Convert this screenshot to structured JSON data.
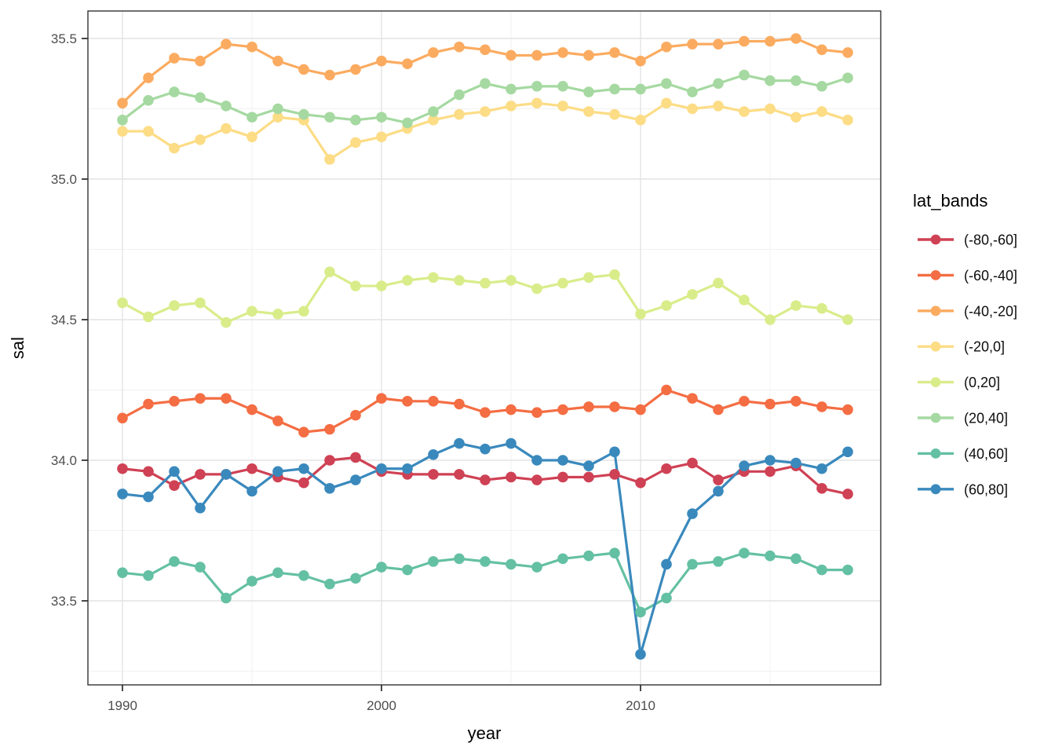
{
  "chart_data": {
    "type": "line",
    "title": "",
    "xlabel": "year",
    "ylabel": "sal",
    "legend_title": "lat_bands",
    "legend_position": "right",
    "grid": true,
    "x": [
      1990,
      1991,
      1992,
      1993,
      1994,
      1995,
      1996,
      1997,
      1998,
      1999,
      2000,
      2001,
      2002,
      2003,
      2004,
      2005,
      2006,
      2007,
      2008,
      2009,
      2010,
      2011,
      2012,
      2013,
      2014,
      2015,
      2016,
      2017,
      2018
    ],
    "x_ticks": [
      1990,
      2000,
      2010
    ],
    "x_minor": [
      1995,
      2005,
      2015
    ],
    "y_ticks": [
      33.5,
      34.0,
      34.5,
      35.0,
      35.5
    ],
    "y_minor": [
      33.25,
      33.75,
      34.25,
      34.75,
      35.25
    ],
    "xlim": [
      1988.7,
      2019.3
    ],
    "ylim": [
      33.2,
      35.6
    ],
    "series": [
      {
        "name": "(-80,-60]",
        "color": "#cf4154",
        "values": [
          33.97,
          33.96,
          33.91,
          33.95,
          33.95,
          33.97,
          33.94,
          33.92,
          34.0,
          34.01,
          33.96,
          33.95,
          33.95,
          33.95,
          33.93,
          33.94,
          33.93,
          33.94,
          33.94,
          33.95,
          33.92,
          33.97,
          33.99,
          33.93,
          33.96,
          33.96,
          33.98,
          33.9,
          33.88
        ]
      },
      {
        "name": "(-60,-40]",
        "color": "#f46d43",
        "values": [
          34.15,
          34.2,
          34.21,
          34.22,
          34.22,
          34.18,
          34.14,
          34.1,
          34.11,
          34.16,
          34.22,
          34.21,
          34.21,
          34.2,
          34.17,
          34.18,
          34.17,
          34.18,
          34.19,
          34.19,
          34.18,
          34.25,
          34.22,
          34.18,
          34.21,
          34.2,
          34.21,
          34.19,
          34.18
        ]
      },
      {
        "name": "(-40,-20]",
        "color": "#fbab60",
        "values": [
          35.27,
          35.36,
          35.43,
          35.42,
          35.48,
          35.47,
          35.42,
          35.39,
          35.37,
          35.39,
          35.42,
          35.41,
          35.45,
          35.47,
          35.46,
          35.44,
          35.44,
          35.45,
          35.44,
          35.45,
          35.42,
          35.47,
          35.48,
          35.48,
          35.49,
          35.49,
          35.5,
          35.46,
          35.45
        ]
      },
      {
        "name": "(-20,0]",
        "color": "#fcdc85",
        "values": [
          35.17,
          35.17,
          35.11,
          35.14,
          35.18,
          35.15,
          35.22,
          35.21,
          35.07,
          35.13,
          35.15,
          35.18,
          35.21,
          35.23,
          35.24,
          35.26,
          35.27,
          35.26,
          35.24,
          35.23,
          35.21,
          35.27,
          35.25,
          35.26,
          35.24,
          35.25,
          35.22,
          35.24,
          35.21
        ]
      },
      {
        "name": "(0,20]",
        "color": "#d9ec8a",
        "values": [
          34.56,
          34.51,
          34.55,
          34.56,
          34.49,
          34.53,
          34.52,
          34.53,
          34.67,
          34.62,
          34.62,
          34.64,
          34.65,
          34.64,
          34.63,
          34.64,
          34.61,
          34.63,
          34.65,
          34.66,
          34.52,
          34.55,
          34.59,
          34.63,
          34.57,
          34.5,
          34.55,
          34.54,
          34.5
        ]
      },
      {
        "name": "(20,40]",
        "color": "#a5d9a1",
        "values": [
          35.21,
          35.28,
          35.31,
          35.29,
          35.26,
          35.22,
          35.25,
          35.23,
          35.22,
          35.21,
          35.22,
          35.2,
          35.24,
          35.3,
          35.34,
          35.32,
          35.33,
          35.33,
          35.31,
          35.32,
          35.32,
          35.34,
          35.31,
          35.34,
          35.37,
          35.35,
          35.35,
          35.33,
          35.36
        ]
      },
      {
        "name": "(40,60]",
        "color": "#64c0a3",
        "values": [
          33.6,
          33.59,
          33.64,
          33.62,
          33.51,
          33.57,
          33.6,
          33.59,
          33.56,
          33.58,
          33.62,
          33.61,
          33.64,
          33.65,
          33.64,
          33.63,
          33.62,
          33.65,
          33.66,
          33.67,
          33.46,
          33.51,
          33.63,
          33.64,
          33.67,
          33.66,
          33.65,
          33.61,
          33.61
        ]
      },
      {
        "name": "(60,80]",
        "color": "#3a89bd",
        "values": [
          33.88,
          33.87,
          33.96,
          33.83,
          33.95,
          33.89,
          33.96,
          33.97,
          33.9,
          33.93,
          33.97,
          33.97,
          34.02,
          34.06,
          34.04,
          34.06,
          34.0,
          34.0,
          33.98,
          34.03,
          33.31,
          33.63,
          33.81,
          33.89,
          33.98,
          34.0,
          33.99,
          33.97,
          34.03
        ]
      }
    ],
    "style": {
      "panel_border_color": "#333333",
      "grid_major_color": "#e3e3e3",
      "grid_minor_color": "#f1f1f1",
      "tick_color": "#333333",
      "tick_label_color": "#4d4d4d",
      "background": "#ffffff"
    }
  }
}
